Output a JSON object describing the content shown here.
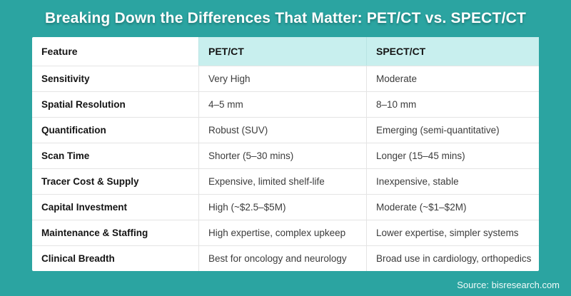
{
  "title": "Breaking Down the Differences That Matter: PET/CT vs. SPECT/CT",
  "table": {
    "headers": [
      "Feature",
      "PET/CT",
      "SPECT/CT"
    ],
    "rows": [
      {
        "feature": "Sensitivity",
        "petct": "Very High",
        "spectct": "Moderate"
      },
      {
        "feature": "Spatial Resolution",
        "petct": "4–5 mm",
        "spectct": "8–10 mm"
      },
      {
        "feature": "Quantification",
        "petct": "Robust (SUV)",
        "spectct": "Emerging (semi-quantitative)"
      },
      {
        "feature": "Scan Time",
        "petct": "Shorter (5–30 mins)",
        "spectct": "Longer (15–45 mins)"
      },
      {
        "feature": "Tracer Cost & Supply",
        "petct": "Expensive, limited shelf-life",
        "spectct": "Inexpensive, stable"
      },
      {
        "feature": "Capital Investment",
        "petct": "High (~$2.5–$5M)",
        "spectct": "Moderate (~$1–$2M)"
      },
      {
        "feature": "Maintenance & Staffing",
        "petct": "High expertise, complex upkeep",
        "spectct": "Lower expertise, simpler systems"
      },
      {
        "feature": "Clinical Breadth",
        "petct": "Best for oncology and neurology",
        "spectct": "Broad use in cardiology, orthopedics"
      }
    ]
  },
  "footer": {
    "source": "Source: bisresearch.com"
  },
  "colors": {
    "background": "#2ba4a1",
    "header_highlight": "#c8efee",
    "cell_background": "#ffffff",
    "divider": "#e4e4e4",
    "title_text": "#ffffff",
    "feature_text": "#141414",
    "value_text": "#3c3c3c"
  }
}
